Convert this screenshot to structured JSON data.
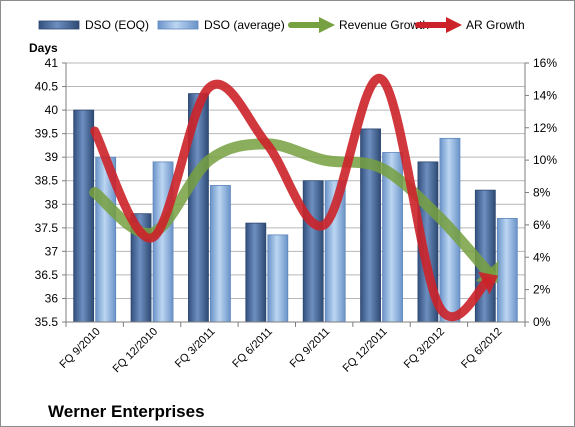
{
  "chart_data": {
    "type": "bar",
    "company": "Werner Enterprises",
    "left_axis_title": "Days",
    "categories": [
      "FQ 9/2010",
      "FQ 12/2010",
      "FQ 3/2011",
      "FQ 6/2011",
      "FQ 9/2011",
      "FQ 12/2011",
      "FQ 3/2012",
      "FQ 6/2012"
    ],
    "ylim_left": [
      35.5,
      41
    ],
    "yticks_left": [
      "41",
      "40.5",
      "40",
      "39.5",
      "39",
      "38.5",
      "38",
      "37.5",
      "37",
      "36.5",
      "36",
      "35.5"
    ],
    "ylim_right": [
      0,
      16
    ],
    "yticks_right": [
      "16%",
      "14%",
      "12%",
      "10%",
      "8%",
      "6%",
      "4%",
      "2%",
      "0%"
    ],
    "grid": true,
    "legend_position": "top",
    "series": [
      {
        "name": "DSO (EOQ)",
        "kind": "bar",
        "axis": "left",
        "color": "#4a6b9c",
        "values": [
          40.0,
          37.8,
          40.35,
          37.6,
          38.5,
          39.6,
          38.9,
          38.3
        ]
      },
      {
        "name": "DSO (average)",
        "kind": "bar",
        "axis": "left",
        "color": "#8fb4e3",
        "values": [
          39.0,
          38.9,
          38.4,
          37.35,
          38.5,
          39.1,
          39.4,
          37.7
        ]
      },
      {
        "name": "Revenue Growth",
        "kind": "arrow-line",
        "axis": "right",
        "color": "#77a040",
        "values": [
          8.0,
          5.5,
          10.0,
          11.0,
          10.0,
          9.5,
          6.5,
          2.5
        ]
      },
      {
        "name": "AR Growth",
        "kind": "arrow-line",
        "axis": "right",
        "color": "#cc2229",
        "values": [
          11.8,
          5.2,
          14.5,
          11.0,
          6.0,
          15.0,
          1.0,
          2.8
        ]
      }
    ]
  }
}
